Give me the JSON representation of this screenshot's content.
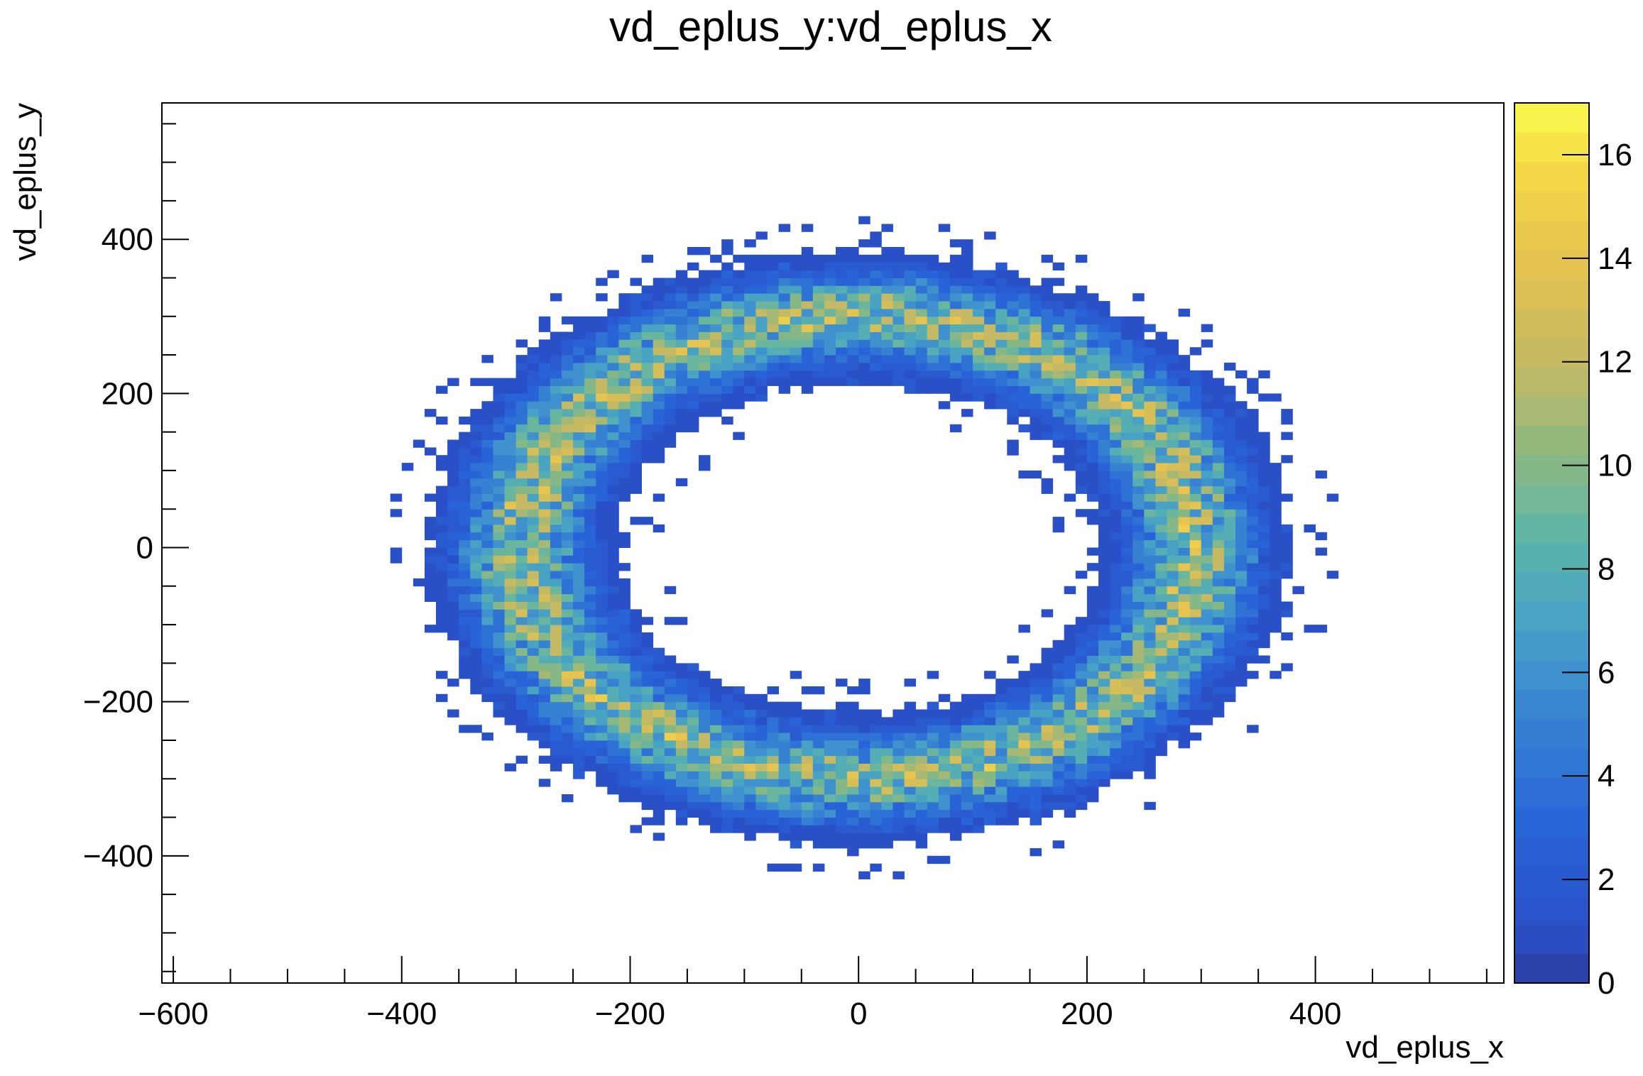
{
  "chart_data": {
    "type": "heatmap",
    "title": "vd_eplus_y:vd_eplus_x",
    "xlabel": "vd_eplus_x",
    "ylabel": "vd_eplus_y",
    "xlim": [
      -610,
      565
    ],
    "ylim": [
      -565,
      577
    ],
    "x_ticks": [
      -600,
      -400,
      -200,
      0,
      200,
      400
    ],
    "x_tick_labels": [
      "−600",
      "−400",
      "−200",
      "0",
      "200",
      "400"
    ],
    "y_ticks": [
      -400,
      -200,
      0,
      200,
      400
    ],
    "y_tick_labels": [
      "−400",
      "−200",
      "0",
      "200",
      "400"
    ],
    "colorbar": {
      "min": 0,
      "max": 17,
      "ticks": [
        0,
        2,
        4,
        6,
        8,
        10,
        12,
        14,
        16
      ],
      "tick_labels": [
        "0",
        "2",
        "4",
        "6",
        "8",
        "10",
        "12",
        "14",
        "16"
      ]
    },
    "ring_model": {
      "center": [
        0,
        0
      ],
      "radius_x": 295,
      "radius_y": 300,
      "width": 35,
      "peak_count": 16,
      "bin_size": 10
    },
    "grid": false,
    "legend": "none"
  }
}
